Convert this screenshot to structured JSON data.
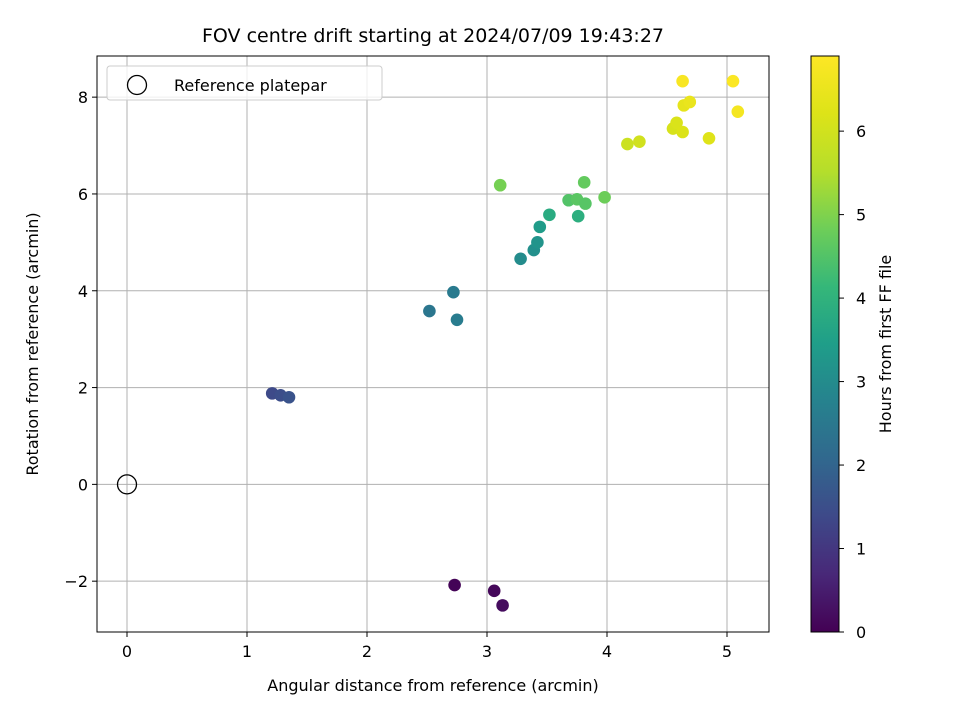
{
  "chart_data": {
    "type": "scatter",
    "title": "FOV centre drift starting at 2024/07/09 19:43:27",
    "xlabel": "Angular distance from reference (arcmin)",
    "ylabel": "Rotation from reference (arcmin)",
    "xlim": [
      -0.25,
      5.35
    ],
    "ylim": [
      -3.05,
      8.85
    ],
    "x_ticks": [
      0,
      1,
      2,
      3,
      4,
      5
    ],
    "y_ticks": [
      -2,
      0,
      2,
      4,
      6,
      8
    ],
    "y_tick_labels": [
      "−2",
      "0",
      "2",
      "4",
      "6",
      "8"
    ],
    "x_tick_labels": [
      "0",
      "1",
      "2",
      "3",
      "4",
      "5"
    ],
    "grid": true,
    "legend": {
      "placement": "top-left",
      "entries": [
        {
          "label": "Reference platepar",
          "marker": "open-circle",
          "x": 0,
          "y": 0
        }
      ]
    },
    "colorbar": {
      "label": "Hours from first FF file",
      "colormap": "viridis",
      "range": [
        0,
        6.9
      ],
      "ticks": [
        0,
        1,
        2,
        3,
        4,
        5,
        6
      ],
      "tick_labels": [
        "0",
        "1",
        "2",
        "3",
        "4",
        "5",
        "6"
      ]
    },
    "series": [
      {
        "points": [
          {
            "x": 2.73,
            "y": -2.08,
            "c": 0.05
          },
          {
            "x": 3.06,
            "y": -2.2,
            "c": 0.12
          },
          {
            "x": 3.13,
            "y": -2.5,
            "c": 0.2
          },
          {
            "x": 1.21,
            "y": 1.88,
            "c": 1.4
          },
          {
            "x": 1.28,
            "y": 1.84,
            "c": 1.5
          },
          {
            "x": 1.35,
            "y": 1.8,
            "c": 1.6
          },
          {
            "x": 2.52,
            "y": 3.58,
            "c": 2.45
          },
          {
            "x": 2.72,
            "y": 3.97,
            "c": 2.55
          },
          {
            "x": 2.75,
            "y": 3.4,
            "c": 2.6
          },
          {
            "x": 3.28,
            "y": 4.66,
            "c": 3.0
          },
          {
            "x": 3.39,
            "y": 4.84,
            "c": 3.1
          },
          {
            "x": 3.42,
            "y": 5.0,
            "c": 3.2
          },
          {
            "x": 3.44,
            "y": 5.32,
            "c": 3.4
          },
          {
            "x": 3.52,
            "y": 5.57,
            "c": 3.8
          },
          {
            "x": 3.76,
            "y": 5.54,
            "c": 3.9
          },
          {
            "x": 3.68,
            "y": 5.87,
            "c": 4.5
          },
          {
            "x": 3.75,
            "y": 5.89,
            "c": 4.6
          },
          {
            "x": 3.82,
            "y": 5.8,
            "c": 4.55
          },
          {
            "x": 3.81,
            "y": 6.24,
            "c": 4.7
          },
          {
            "x": 3.98,
            "y": 5.93,
            "c": 4.8
          },
          {
            "x": 3.11,
            "y": 6.18,
            "c": 4.9
          },
          {
            "x": 4.17,
            "y": 7.03,
            "c": 5.9
          },
          {
            "x": 4.27,
            "y": 7.08,
            "c": 6.0
          },
          {
            "x": 4.55,
            "y": 7.35,
            "c": 6.1
          },
          {
            "x": 4.58,
            "y": 7.47,
            "c": 6.15
          },
          {
            "x": 4.63,
            "y": 7.28,
            "c": 6.2
          },
          {
            "x": 4.85,
            "y": 7.15,
            "c": 6.25
          },
          {
            "x": 4.64,
            "y": 7.83,
            "c": 6.4
          },
          {
            "x": 4.69,
            "y": 7.9,
            "c": 6.5
          },
          {
            "x": 5.09,
            "y": 7.7,
            "c": 6.7
          },
          {
            "x": 4.63,
            "y": 8.33,
            "c": 6.8
          },
          {
            "x": 5.05,
            "y": 8.33,
            "c": 6.85
          }
        ]
      }
    ],
    "colors": {
      "grid": "#b0b0b0",
      "axes": "#000000",
      "background": "#ffffff"
    }
  }
}
